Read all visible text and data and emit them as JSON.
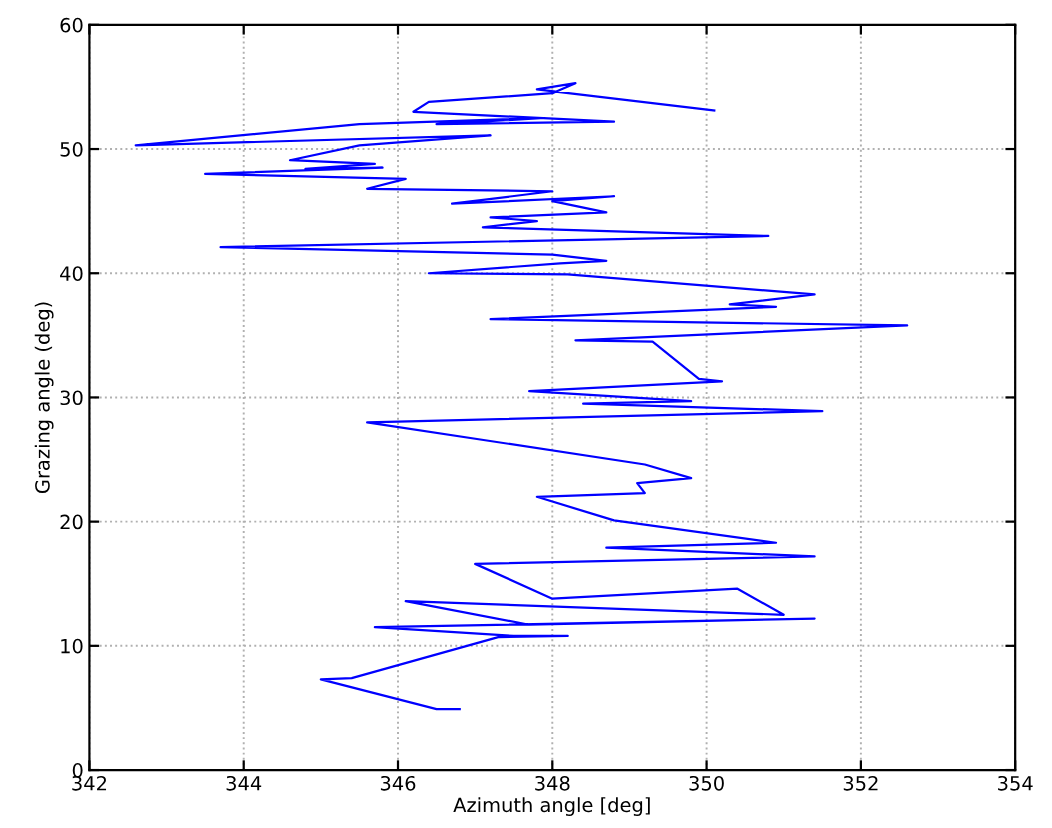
{
  "chart_data": {
    "type": "line",
    "xlabel": "Azimuth angle [deg]",
    "ylabel": "Grazing angle (deg)",
    "xlim": [
      342,
      354
    ],
    "ylim": [
      0,
      60
    ],
    "xticks": [
      342,
      344,
      346,
      348,
      350,
      352,
      354
    ],
    "yticks": [
      0,
      10,
      20,
      30,
      40,
      50,
      60
    ],
    "grid": true,
    "line_style": "solid",
    "marker": "none",
    "series": [
      {
        "color": "#0000ff",
        "x": [
          346.8,
          346.5,
          345.0,
          345.4,
          347.3,
          348.2,
          347.5,
          345.7,
          351.4,
          347.7,
          346.1,
          351.0,
          350.4,
          348.0,
          347.0,
          351.4,
          348.7,
          350.9,
          348.8,
          347.8,
          349.2,
          349.1,
          349.8,
          349.2,
          345.6,
          351.5,
          348.4,
          349.8,
          347.7,
          350.2,
          349.9,
          349.3,
          348.3,
          352.6,
          347.2,
          350.9,
          350.3,
          351.4,
          348.2,
          346.4,
          348.1,
          348.7,
          348.0,
          343.7,
          350.8,
          347.1,
          347.8,
          347.2,
          348.7,
          348.0,
          348.8,
          346.7,
          348.0,
          345.6,
          346.1,
          343.5,
          345.8,
          344.8,
          345.7,
          344.6,
          345.5,
          347.2,
          342.6,
          345.5,
          347.9,
          346.5,
          348.8,
          346.2,
          346.4,
          348.0,
          348.3,
          347.8,
          350.1
        ],
        "values": [
          4.9,
          4.9,
          7.3,
          7.4,
          10.7,
          10.8,
          10.8,
          11.5,
          12.2,
          11.7,
          13.6,
          12.5,
          14.6,
          13.8,
          16.6,
          17.2,
          17.9,
          18.3,
          20.1,
          22.0,
          22.3,
          23.1,
          23.5,
          24.6,
          28.0,
          28.9,
          29.5,
          29.7,
          30.5,
          31.3,
          31.5,
          34.5,
          34.6,
          35.8,
          36.3,
          37.3,
          37.5,
          38.3,
          39.9,
          40.0,
          40.8,
          41.0,
          41.5,
          42.1,
          43.0,
          43.7,
          44.2,
          44.5,
          44.9,
          45.8,
          46.2,
          45.6,
          46.6,
          46.8,
          47.6,
          48.0,
          48.5,
          48.4,
          48.8,
          49.1,
          50.3,
          51.1,
          50.3,
          52.0,
          52.5,
          52.0,
          52.2,
          53.0,
          53.8,
          54.5,
          55.3,
          54.8,
          53.1
        ]
      }
    ]
  }
}
